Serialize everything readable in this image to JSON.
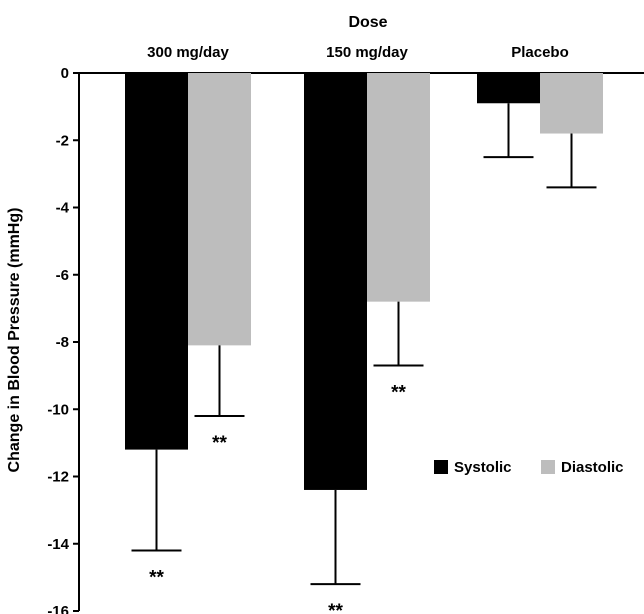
{
  "chart_data": {
    "type": "bar",
    "title": "Dose",
    "xlabel": "",
    "ylabel": "Change in Blood Pressure (mmHg)",
    "categories": [
      "300 mg/day",
      "150 mg/day",
      "Placebo"
    ],
    "series": [
      {
        "name": "Systolic",
        "color": "#000000",
        "values": [
          -11.2,
          -12.4,
          -0.9
        ],
        "error": [
          3.0,
          2.8,
          1.6
        ],
        "annotations": [
          "**",
          "**",
          ""
        ]
      },
      {
        "name": "Diastolic",
        "color": "#bdbdbd",
        "values": [
          -8.1,
          -6.8,
          -1.8
        ],
        "error": [
          2.1,
          1.9,
          1.6
        ],
        "annotations": [
          "**",
          "**",
          ""
        ]
      }
    ],
    "ylim": [
      -16,
      0
    ],
    "yticks": [
      0,
      -2,
      -4,
      -6,
      -8,
      -10,
      -12,
      -14,
      -16
    ],
    "error_bar_direction": "down",
    "grid": false,
    "legend": "right",
    "category_label_position": "top"
  }
}
